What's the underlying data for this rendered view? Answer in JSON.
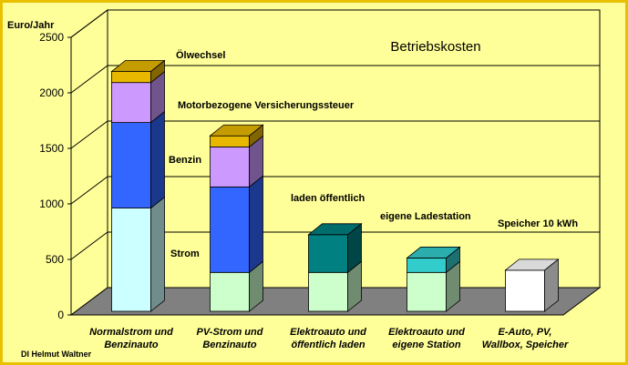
{
  "chart_data": {
    "type": "bar",
    "stacked": true,
    "three_d": true,
    "title": "Betriebskosten",
    "ylabel": "Euro/Jahr",
    "xlabel": "",
    "ylim": [
      0,
      2500
    ],
    "yticks": [
      "0",
      "500",
      "1000",
      "1500",
      "2000",
      "2500"
    ],
    "grid": true,
    "legend": "none",
    "categories": [
      [
        "Normalstrom und",
        "Benzinauto"
      ],
      [
        "PV-Strom und",
        "Benzinauto"
      ],
      [
        "Elektroauto und",
        "öffentlich laden"
      ],
      [
        "Elektroauto und",
        "eigene Station"
      ],
      [
        "E-Auto, PV,",
        "Wallbox, Speicher"
      ]
    ],
    "stacks": [
      [
        {
          "component": "Strom",
          "value": 930,
          "color": "#ccffff"
        },
        {
          "component": "Benzin",
          "value": 770,
          "color": "#3366ff"
        },
        {
          "component": "Motorbezogene Versicherungssteuer",
          "value": 360,
          "color": "#cc99ff"
        },
        {
          "component": "Ölwechsel",
          "value": 100,
          "color": "#e8b800"
        }
      ],
      [
        {
          "component": "Strom",
          "value": 350,
          "color": "#ccffcc"
        },
        {
          "component": "Benzin",
          "value": 770,
          "color": "#3366ff"
        },
        {
          "component": "Motorbezogene Versicherungssteuer",
          "value": 360,
          "color": "#cc99ff"
        },
        {
          "component": "Ölwechsel",
          "value": 100,
          "color": "#e8b800"
        }
      ],
      [
        {
          "component": "Strom",
          "value": 350,
          "color": "#ccffcc"
        },
        {
          "component": "laden öffentlich",
          "value": 340,
          "color": "#008080"
        }
      ],
      [
        {
          "component": "Strom",
          "value": 350,
          "color": "#ccffcc"
        },
        {
          "component": "eigene Ladestation",
          "value": 130,
          "color": "#33cccc"
        }
      ],
      [
        {
          "component": "Speicher 10 kWh",
          "value": 370,
          "color": "#ffffff"
        }
      ]
    ],
    "annotations": [
      "Ölwechsel",
      "Motorbezogene Versicherungssteuer",
      "Benzin",
      "Strom",
      "laden öffentlich",
      "eigene Ladestation",
      "Speicher 10 kWh"
    ],
    "credit": "DI Helmut Waltner",
    "colors": {
      "background": "#ffff99",
      "frame": "#ffff00",
      "floor": "#808080",
      "wall": "#ffff99",
      "grid": "#000000"
    }
  }
}
